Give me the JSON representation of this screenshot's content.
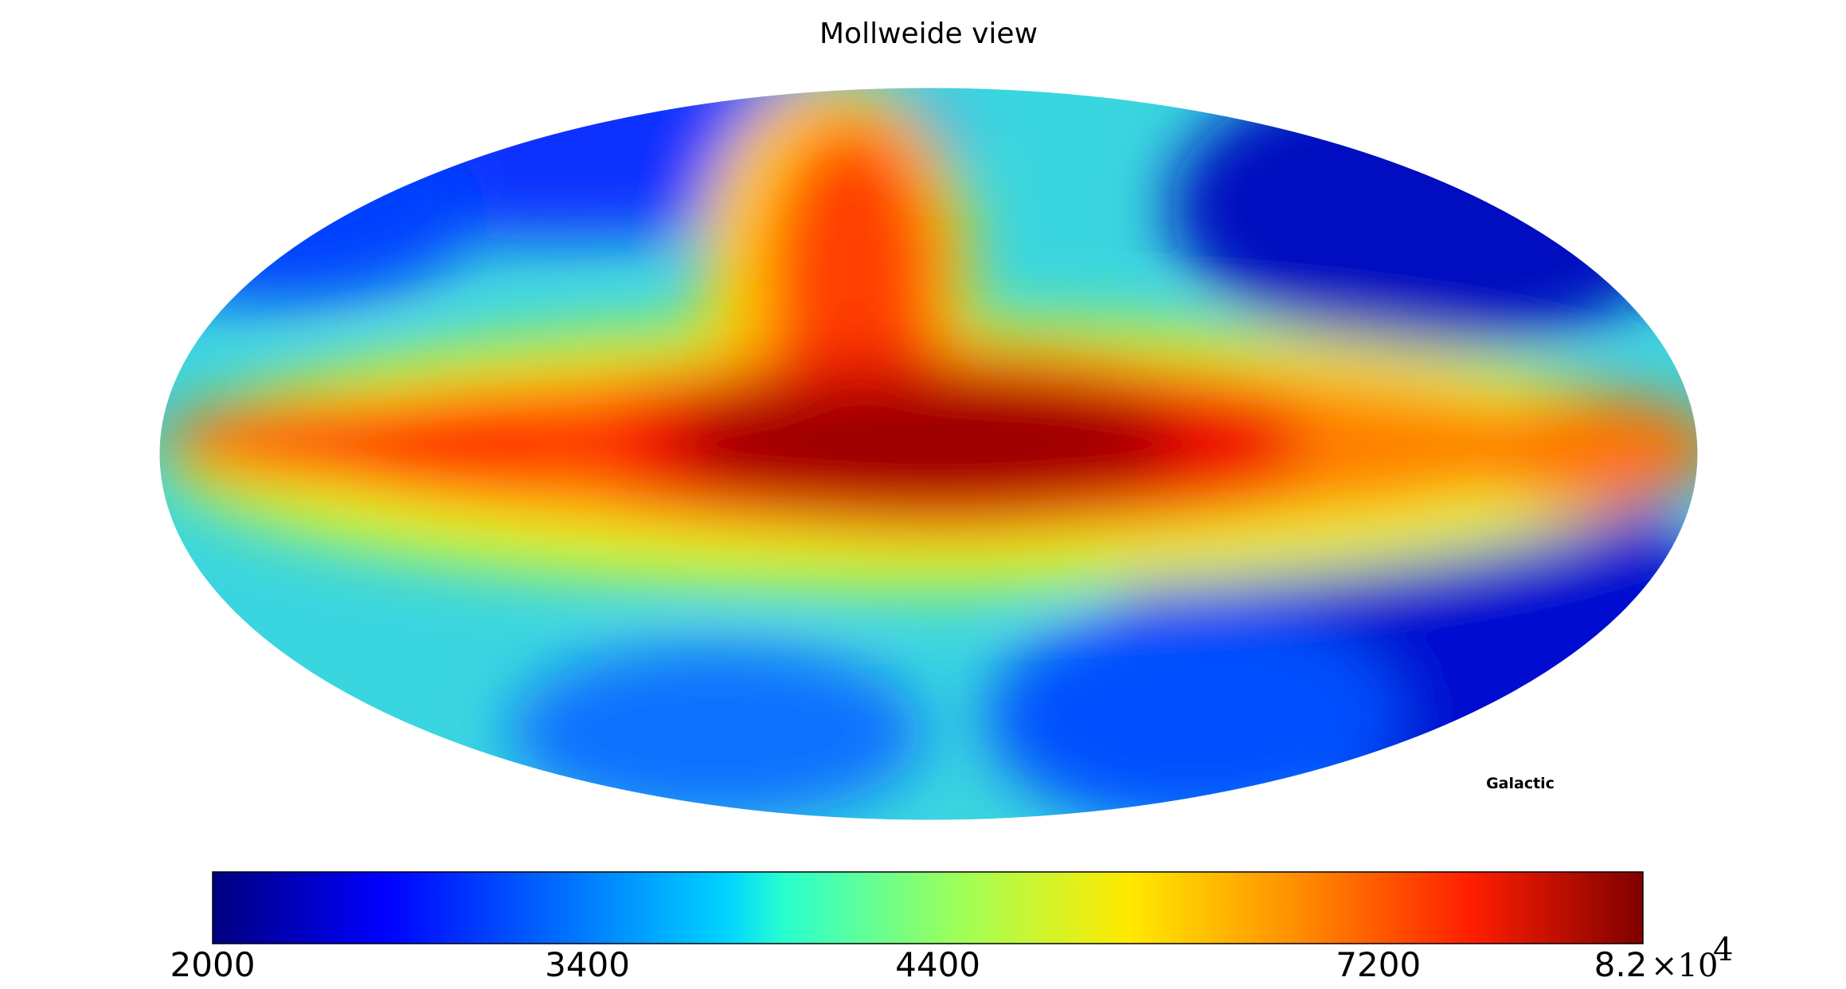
{
  "title": "Mollweide view",
  "coord_label": "Galactic",
  "colorbar": {
    "ticks": [
      "2000",
      "3400",
      "4400",
      "7200",
      "8.2"
    ],
    "offset_label": "×10",
    "offset_exponent": "4"
  }
}
